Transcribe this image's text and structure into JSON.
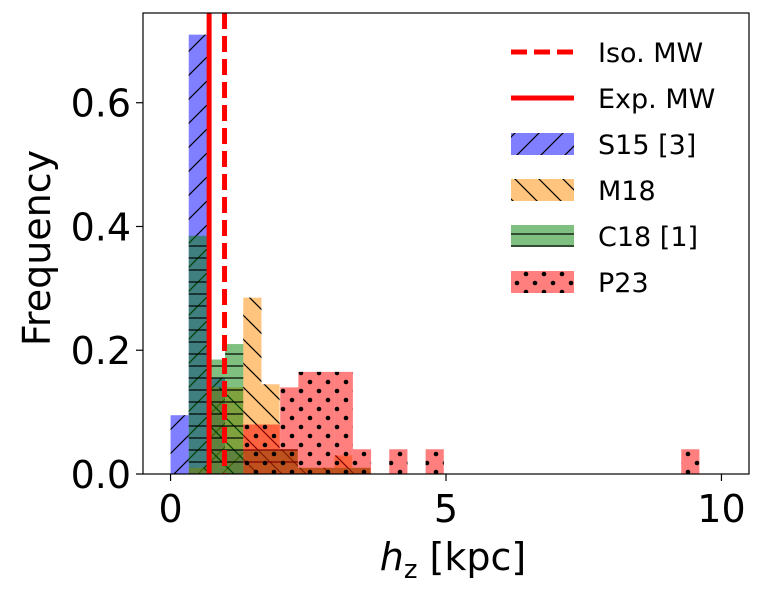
{
  "chart_data": {
    "type": "histogram",
    "title": "",
    "xlabel": "[kpc]",
    "xlabel_symbol": "h",
    "xlabel_subscript": "z",
    "ylabel": "Frequency",
    "xlim": [
      -0.5,
      10.5
    ],
    "ylim": [
      0,
      0.745
    ],
    "xticks": [
      0,
      5,
      10
    ],
    "xtick_labels": [
      "0",
      "5",
      "10"
    ],
    "yticks": [
      0.0,
      0.2,
      0.4,
      0.6
    ],
    "ytick_labels": [
      "0.0",
      "0.2",
      "0.4",
      "0.6"
    ],
    "legend_position": "top-right",
    "vlines": [
      {
        "name": "Iso. MW",
        "x": 0.98,
        "color": "#ff0000",
        "style": "dashed"
      },
      {
        "name": "Exp. MW",
        "x": 0.7,
        "color": "#ff0000",
        "style": "solid"
      }
    ],
    "series": [
      {
        "name": "S15 [3]",
        "color": "#0000ff",
        "alpha": 0.5,
        "hatch": "diagonal-forward",
        "bins": [
          {
            "x0": 0.0,
            "x1": 0.33,
            "v": 0.095
          },
          {
            "x0": 0.33,
            "x1": 0.66,
            "v": 0.71
          },
          {
            "x0": 0.66,
            "x1": 0.99,
            "v": 0.155
          },
          {
            "x0": 0.99,
            "x1": 1.32,
            "v": 0.04
          }
        ]
      },
      {
        "name": "M18",
        "color": "#ff8c00",
        "alpha": 0.5,
        "hatch": "diagonal-back",
        "bins": [
          {
            "x0": 0.33,
            "x1": 0.66,
            "v": 0.01
          },
          {
            "x0": 0.66,
            "x1": 0.99,
            "v": 0.14
          },
          {
            "x0": 0.99,
            "x1": 1.32,
            "v": 0.14
          },
          {
            "x0": 1.32,
            "x1": 1.65,
            "v": 0.285
          },
          {
            "x0": 1.65,
            "x1": 1.98,
            "v": 0.145
          },
          {
            "x0": 1.98,
            "x1": 2.31,
            "v": 0.04
          },
          {
            "x0": 2.31,
            "x1": 2.64,
            "v": 0.01
          },
          {
            "x0": 2.64,
            "x1": 2.97,
            "v": 0.01
          },
          {
            "x0": 2.97,
            "x1": 3.3,
            "v": 0.03
          },
          {
            "x0": 3.3,
            "x1": 3.63,
            "v": 0.01
          }
        ]
      },
      {
        "name": "C18 [1]",
        "color": "#008000",
        "alpha": 0.5,
        "hatch": "horizontal",
        "bins": [
          {
            "x0": 0.33,
            "x1": 0.66,
            "v": 0.385
          },
          {
            "x0": 0.66,
            "x1": 0.99,
            "v": 0.185
          },
          {
            "x0": 0.99,
            "x1": 1.32,
            "v": 0.21
          },
          {
            "x0": 1.32,
            "x1": 1.65,
            "v": 0.04
          },
          {
            "x0": 1.65,
            "x1": 1.98,
            "v": 0.04
          },
          {
            "x0": 1.98,
            "x1": 2.31,
            "v": 0.04
          },
          {
            "x0": 2.31,
            "x1": 2.64,
            "v": 0.01
          },
          {
            "x0": 2.64,
            "x1": 2.97,
            "v": 0.01
          },
          {
            "x0": 2.97,
            "x1": 3.3,
            "v": 0.01
          },
          {
            "x0": 3.3,
            "x1": 3.63,
            "v": 0.01
          }
        ]
      },
      {
        "name": "P23",
        "color": "#ff0000",
        "alpha": 0.5,
        "hatch": "dots",
        "bins": [
          {
            "x0": 1.32,
            "x1": 1.65,
            "v": 0.08
          },
          {
            "x0": 1.65,
            "x1": 1.99,
            "v": 0.08
          },
          {
            "x0": 1.99,
            "x1": 2.32,
            "v": 0.14
          },
          {
            "x0": 2.32,
            "x1": 2.65,
            "v": 0.165
          },
          {
            "x0": 2.65,
            "x1": 2.98,
            "v": 0.165
          },
          {
            "x0": 2.98,
            "x1": 3.31,
            "v": 0.165
          },
          {
            "x0": 3.31,
            "x1": 3.64,
            "v": 0.04
          },
          {
            "x0": 3.97,
            "x1": 4.3,
            "v": 0.04
          },
          {
            "x0": 4.63,
            "x1": 4.96,
            "v": 0.04
          },
          {
            "x0": 9.27,
            "x1": 9.6,
            "v": 0.04
          }
        ]
      }
    ]
  }
}
